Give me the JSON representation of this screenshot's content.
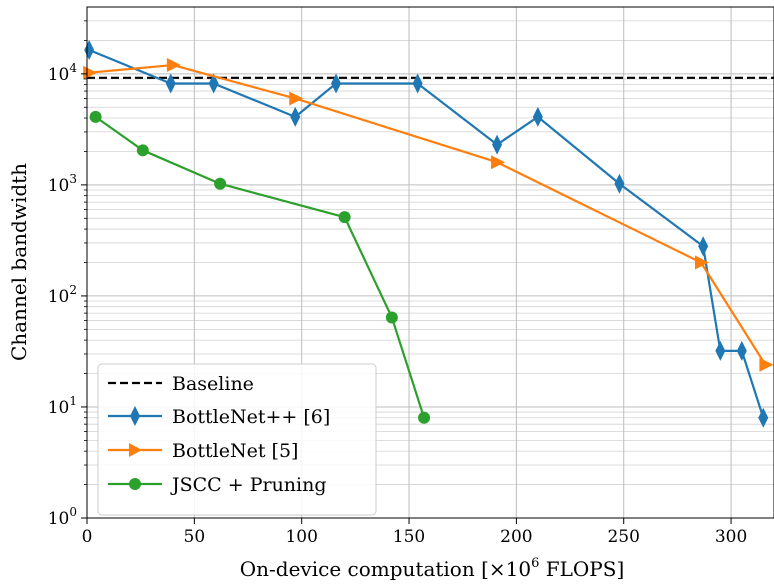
{
  "chart_data": {
    "type": "line",
    "title": "",
    "xlabel_main": "On-device computation [×10",
    "xlabel_sup": "6",
    "xlabel_tail": " FLOPS]",
    "ylabel": "Channel bandwidth",
    "yscale": "log",
    "xlim": [
      0,
      320
    ],
    "ylim": [
      1,
      40000
    ],
    "x_ticks": [
      0,
      50,
      100,
      150,
      200,
      250,
      300
    ],
    "x_tick_labels": [
      "0",
      "50",
      "100",
      "150",
      "200",
      "250",
      "300"
    ],
    "y_ticks": [
      1,
      10,
      100,
      1000,
      10000
    ],
    "y_tick_bases": [
      "10",
      "10",
      "10",
      "10",
      "10"
    ],
    "y_tick_exps": [
      "0",
      "1",
      "2",
      "3",
      "4"
    ],
    "grid": "major and minor",
    "legend_position": "lower-left",
    "baseline": {
      "name": "Baseline",
      "value": 9216,
      "color": "#000000",
      "style": "dashed"
    },
    "series": [
      {
        "name": "BottleNet++ [6]",
        "color": "#1f77b4",
        "marker": "thin_diamond",
        "x": [
          1,
          39,
          59,
          97,
          116,
          154,
          191,
          210,
          248,
          287,
          295,
          305,
          315
        ],
        "y": [
          16384,
          8192,
          8192,
          4096,
          8192,
          8192,
          2304,
          4096,
          1024,
          280,
          32,
          32,
          8
        ]
      },
      {
        "name": "BottleNet [5]",
        "color": "#ff7f0e",
        "marker": "triangle_right",
        "x": [
          1,
          40,
          97,
          191,
          286,
          316
        ],
        "y": [
          10240,
          12000,
          6000,
          1600,
          200,
          24
        ]
      },
      {
        "name": "JSCC + Pruning",
        "color": "#2ca02c",
        "marker": "circle",
        "x": [
          4,
          26,
          62,
          120,
          142,
          157
        ],
        "y": [
          4096,
          2048,
          1024,
          512,
          64,
          8
        ]
      }
    ]
  }
}
